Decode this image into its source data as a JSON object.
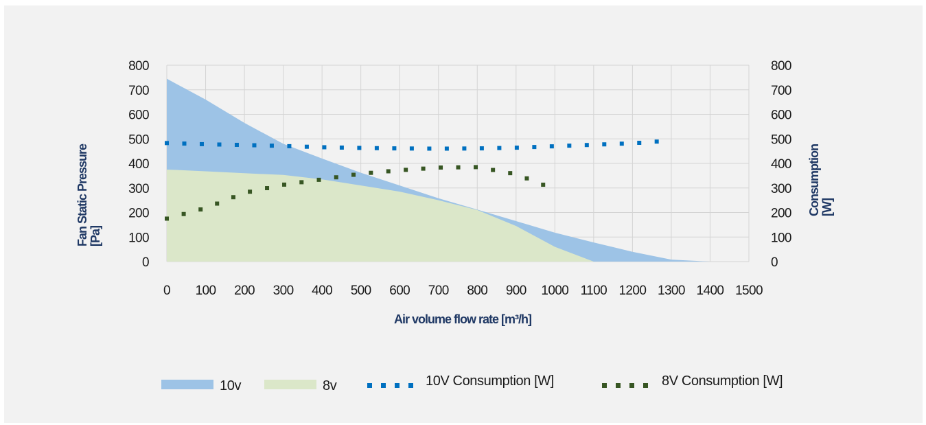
{
  "chart_data": {
    "type": "area",
    "xlabel": "Air volume flow rate [m³/h]",
    "ylabel_left": [
      "Fan Static Pressure",
      "[Pa]"
    ],
    "ylabel_right": [
      "Consumption",
      "[W]"
    ],
    "xlim": [
      0,
      1500
    ],
    "ylim": [
      0,
      800
    ],
    "y2lim": [
      0,
      800
    ],
    "x_ticks": [
      "0",
      "100",
      "200",
      "300",
      "400",
      "500",
      "600",
      "700",
      "800",
      "900",
      "1000",
      "1100",
      "1200",
      "1300",
      "1400",
      "1500"
    ],
    "y_ticks": [
      "800",
      "700",
      "600",
      "500",
      "400",
      "300",
      "200",
      "100",
      "0"
    ],
    "y2_ticks": [
      "800",
      "700",
      "600",
      "500",
      "400",
      "300",
      "200",
      "100",
      "0"
    ],
    "grid": true,
    "legend_position": "bottom",
    "series": [
      {
        "name": "10v",
        "kind": "area",
        "color": "#9dc3e6",
        "points": [
          [
            0,
            745
          ],
          [
            100,
            660
          ],
          [
            200,
            565
          ],
          [
            300,
            480
          ],
          [
            400,
            420
          ],
          [
            500,
            362
          ],
          [
            600,
            310
          ],
          [
            700,
            258
          ],
          [
            800,
            212
          ],
          [
            900,
            165
          ],
          [
            1000,
            118
          ],
          [
            1100,
            78
          ],
          [
            1200,
            40
          ],
          [
            1300,
            8
          ],
          [
            1400,
            0
          ]
        ]
      },
      {
        "name": "8v",
        "kind": "area",
        "color": "#dbe7c9",
        "points": [
          [
            0,
            375
          ],
          [
            100,
            368
          ],
          [
            200,
            360
          ],
          [
            300,
            353
          ],
          [
            400,
            335
          ],
          [
            500,
            310
          ],
          [
            600,
            285
          ],
          [
            700,
            250
          ],
          [
            800,
            210
          ],
          [
            900,
            145
          ],
          [
            1000,
            60
          ],
          [
            1100,
            0
          ]
        ]
      },
      {
        "name": "10V Consumption [W]",
        "kind": "dotted-line",
        "axis": "right",
        "color": "#0070c0",
        "points": [
          [
            0,
            483
          ],
          [
            100,
            478
          ],
          [
            200,
            475
          ],
          [
            300,
            471
          ],
          [
            400,
            466
          ],
          [
            500,
            463
          ],
          [
            600,
            461
          ],
          [
            700,
            460
          ],
          [
            800,
            461
          ],
          [
            900,
            464
          ],
          [
            1000,
            470
          ],
          [
            1100,
            476
          ],
          [
            1200,
            482
          ],
          [
            1300,
            493
          ]
        ]
      },
      {
        "name": "8V Consumption [W]",
        "kind": "dotted-line",
        "axis": "right",
        "color": "#375623",
        "points": [
          [
            0,
            175
          ],
          [
            100,
            218
          ],
          [
            200,
            280
          ],
          [
            300,
            313
          ],
          [
            400,
            335
          ],
          [
            500,
            358
          ],
          [
            600,
            372
          ],
          [
            700,
            383
          ],
          [
            800,
            385
          ],
          [
            900,
            356
          ],
          [
            975,
            310
          ]
        ]
      }
    ]
  }
}
